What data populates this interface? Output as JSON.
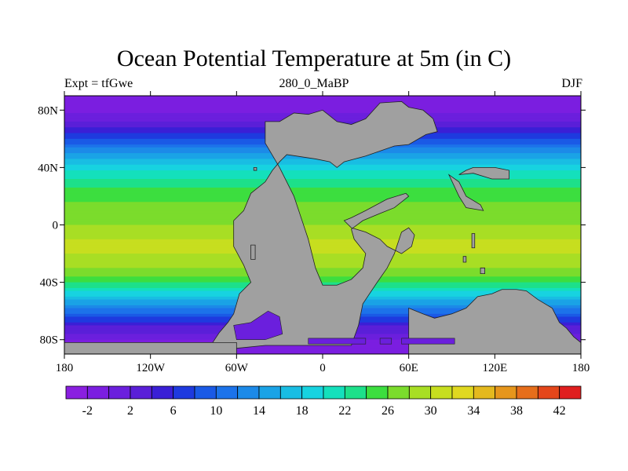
{
  "chart_data": {
    "type": "heatmap",
    "title": "Ocean Potential Temperature at 5m (in C)",
    "left_string": "Expt = tfGwe",
    "center_string": "280_0_MaBP",
    "right_string": "DJF",
    "map_projection": "cylindrical-equidistant",
    "lon_range": [
      -180,
      180
    ],
    "lat_range": [
      -90,
      90
    ],
    "x_ticks": [
      {
        "value": -180,
        "label": "180"
      },
      {
        "value": -120,
        "label": "120W"
      },
      {
        "value": -60,
        "label": "60W"
      },
      {
        "value": 0,
        "label": "0"
      },
      {
        "value": 60,
        "label": "60E"
      },
      {
        "value": 120,
        "label": "120E"
      },
      {
        "value": 180,
        "label": "180"
      }
    ],
    "y_ticks": [
      {
        "value": 80,
        "label": "80N"
      },
      {
        "value": 40,
        "label": "40N"
      },
      {
        "value": 0,
        "label": "0"
      },
      {
        "value": -40,
        "label": "40S"
      },
      {
        "value": -80,
        "label": "80S"
      }
    ],
    "land_color": "#a0a0a0",
    "colorbar": {
      "levels": [
        -4,
        -2,
        0,
        2,
        4,
        6,
        8,
        10,
        12,
        14,
        16,
        18,
        20,
        22,
        24,
        26,
        28,
        30,
        32,
        34,
        36,
        38,
        40,
        42,
        44
      ],
      "labeled_values": [
        -2,
        2,
        6,
        10,
        14,
        18,
        22,
        26,
        30,
        34,
        38,
        42
      ],
      "labels": [
        "-2",
        "2",
        "6",
        "10",
        "14",
        "18",
        "22",
        "26",
        "30",
        "34",
        "38",
        "42"
      ],
      "colors": [
        "#8a1fe0",
        "#7b1ee0",
        "#6b1fdd",
        "#5a1fd8",
        "#3a1fd6",
        "#1e3adf",
        "#1a5ae6",
        "#1c73ea",
        "#1c8ae8",
        "#1aa3e6",
        "#19bde3",
        "#17d3e0",
        "#14e0bc",
        "#1de08a",
        "#3cde3f",
        "#7bdc2c",
        "#a8de24",
        "#c7de1f",
        "#e0d820",
        "#e4b91e",
        "#e6961c",
        "#e66e1b",
        "#e4461a",
        "#e01f1f"
      ]
    },
    "zonal_mean_sst_profile": {
      "latitudes": [
        90,
        80,
        70,
        60,
        50,
        40,
        30,
        20,
        10,
        0,
        -10,
        -20,
        -30,
        -40,
        -50,
        -60,
        -70,
        -80,
        -90
      ],
      "values": [
        -1,
        -1,
        3,
        8,
        14,
        19,
        23,
        25,
        27,
        28,
        30,
        30,
        28,
        24,
        18,
        11,
        4,
        0,
        -1
      ]
    }
  }
}
